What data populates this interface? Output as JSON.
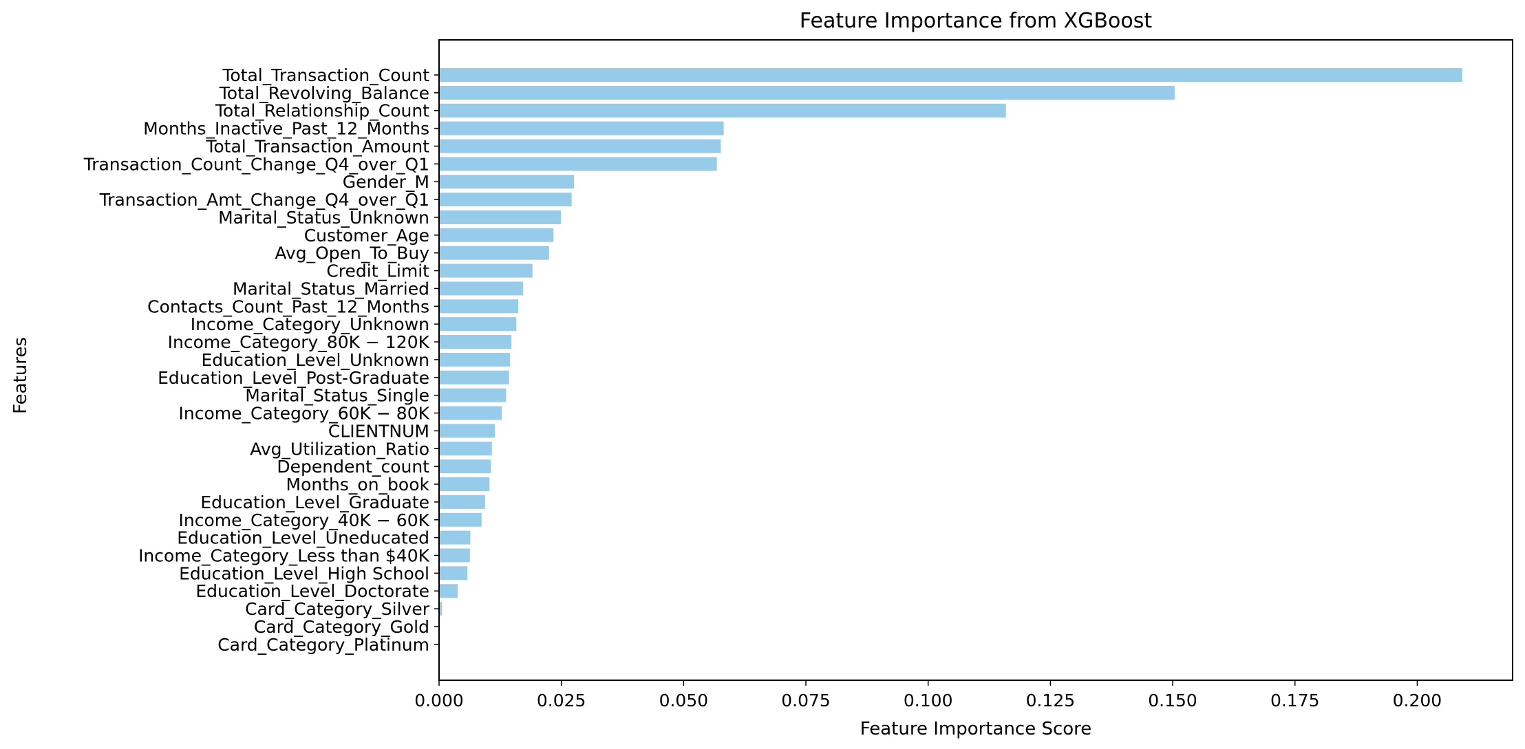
{
  "chart_data": {
    "type": "bar",
    "orientation": "horizontal",
    "title": "Feature Importance from XGBoost",
    "xlabel": "Feature Importance Score",
    "ylabel": "Features",
    "xlim": [
      0,
      0.2195
    ],
    "xticks": [
      0.0,
      0.025,
      0.05,
      0.075,
      0.1,
      0.125,
      0.15,
      0.175,
      0.2
    ],
    "xtick_labels": [
      "0.000",
      "0.025",
      "0.050",
      "0.075",
      "0.100",
      "0.125",
      "0.150",
      "0.175",
      "0.200"
    ],
    "grid": false,
    "bar_color": "#97cbea",
    "categories": [
      "Total_Transaction_Count",
      "Total_Revolving_Balance",
      "Total_Relationship_Count",
      "Months_Inactive_Past_12_Months",
      "Total_Transaction_Amount",
      "Transaction_Count_Change_Q4_over_Q1",
      "Gender_M",
      "Transaction_Amt_Change_Q4_over_Q1",
      "Marital_Status_Unknown",
      "Customer_Age",
      "Avg_Open_To_Buy",
      "Credit_Limit",
      "Marital_Status_Married",
      "Contacts_Count_Past_12_Months",
      "Income_Category_Unknown",
      "Income_Category_80K − 120K",
      "Education_Level_Unknown",
      "Education_Level_Post-Graduate",
      "Marital_Status_Single",
      "Income_Category_60K − 80K",
      "CLIENTNUM",
      "Avg_Utilization_Ratio",
      "Dependent_count",
      "Months_on_book",
      "Education_Level_Graduate",
      "Income_Category_40K − 60K",
      "Education_Level_Uneducated",
      "Income_Category_Less than $40K",
      "Education_Level_High School",
      "Education_Level_Doctorate",
      "Card_Category_Silver",
      "Card_Category_Gold",
      "Card_Category_Platinum"
    ],
    "values": [
      0.2092,
      0.1504,
      0.1159,
      0.0582,
      0.0576,
      0.0568,
      0.0276,
      0.0271,
      0.0249,
      0.0234,
      0.0225,
      0.0191,
      0.0172,
      0.0162,
      0.0158,
      0.0148,
      0.0145,
      0.0143,
      0.0137,
      0.0128,
      0.0114,
      0.0108,
      0.0106,
      0.0103,
      0.0094,
      0.0087,
      0.0064,
      0.0063,
      0.0058,
      0.0038,
      0.0006,
      0.0,
      0.0
    ]
  }
}
